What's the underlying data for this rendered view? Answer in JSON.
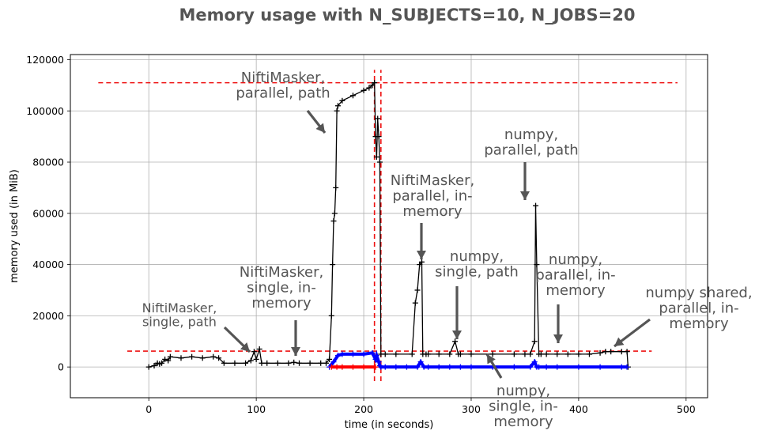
{
  "chart_data": {
    "type": "line",
    "title": "Memory usage with N_SUBJECTS=10, N_JOBS=20",
    "xlabel": "time (in seconds)",
    "ylabel": "memory used (in MiB)",
    "xlim": [
      -73,
      520
    ],
    "ylim": [
      -12000,
      122000
    ],
    "xticks": [
      0,
      100,
      200,
      300,
      400,
      500
    ],
    "yticks": [
      0,
      20000,
      40000,
      60000,
      80000,
      100000,
      120000
    ],
    "grid": true,
    "colors": {
      "main": "#000000",
      "blue": "#0000ff",
      "red": "#ff0000",
      "ref": "#ee1111",
      "annot": "#555555"
    },
    "series": [
      {
        "color": "#000000",
        "x": [
          0,
          5,
          8,
          10,
          12,
          15,
          18,
          20,
          30,
          40,
          50,
          60,
          65,
          70,
          80,
          90,
          95,
          98,
          100,
          103,
          105,
          110,
          120,
          130,
          135,
          140,
          150,
          160,
          165,
          168,
          170,
          171,
          172,
          173,
          174,
          175,
          176,
          180,
          190,
          200,
          205,
          208,
          210,
          211,
          212,
          213,
          214,
          215,
          216,
          220,
          230,
          245,
          248,
          250,
          252,
          254,
          255,
          258,
          260,
          270,
          280,
          285,
          288,
          290,
          300,
          320,
          340,
          350,
          355,
          359,
          360,
          361,
          363,
          365,
          370,
          380,
          390,
          400,
          410,
          420,
          425,
          430,
          440,
          445,
          446
        ],
        "y": [
          0,
          500,
          1500,
          1200,
          1500,
          3000,
          2500,
          4000,
          3500,
          4000,
          3500,
          4000,
          3500,
          1500,
          1500,
          1500,
          2500,
          6000,
          3000,
          7000,
          1500,
          1500,
          1500,
          1500,
          1800,
          1500,
          1500,
          1500,
          1500,
          3000,
          20000,
          40000,
          57000,
          60000,
          70000,
          100000,
          102000,
          104000,
          106000,
          108000,
          109000,
          110000,
          111000,
          90000,
          82000,
          97000,
          90000,
          80000,
          5000,
          5000,
          5000,
          5000,
          25000,
          30000,
          40000,
          41000,
          5000,
          5000,
          5000,
          5000,
          5000,
          10000,
          5000,
          5000,
          5000,
          5000,
          5000,
          5000,
          5000,
          10000,
          63000,
          40000,
          5000,
          5000,
          5000,
          5000,
          5000,
          5000,
          5000,
          5500,
          6000,
          6000,
          6000,
          6000,
          0
        ]
      },
      {
        "color": "#0000ff",
        "x": [
          168,
          172,
          176,
          180,
          190,
          200,
          208,
          211,
          212,
          214,
          215,
          216,
          220,
          230,
          240,
          250,
          253,
          256,
          260,
          270,
          280,
          290,
          300,
          320,
          340,
          355,
          359,
          361,
          363,
          370,
          380,
          400,
          420,
          440,
          445
        ],
        "y": [
          0,
          2000,
          4500,
          5000,
          5000,
          5000,
          5500,
          3000,
          4500,
          2000,
          500,
          0,
          0,
          0,
          0,
          0,
          2000,
          0,
          0,
          0,
          0,
          0,
          0,
          0,
          0,
          0,
          2000,
          0,
          0,
          0,
          0,
          0,
          0,
          0,
          0
        ]
      },
      {
        "color": "#ff0000",
        "x": [
          170,
          175,
          180,
          190,
          200,
          210,
          211
        ],
        "y": [
          0,
          0,
          0,
          0,
          0,
          0,
          0
        ]
      }
    ],
    "reference_lines": [
      {
        "orientation": "h",
        "y": 111000,
        "x_from": -47,
        "x_to": 492
      },
      {
        "orientation": "h",
        "y": 6200,
        "x_from": -20,
        "x_to": 468
      },
      {
        "orientation": "v",
        "x": 210,
        "y_from": -5500,
        "y_to": 116000
      },
      {
        "orientation": "v",
        "x": 216,
        "y_from": -5500,
        "y_to": 116000
      }
    ],
    "annotations": [
      {
        "lines": [
          "NiftiMasker,",
          "parallel, path"
        ]
      },
      {
        "lines": [
          "NiftiMasker,",
          "parallel, in-",
          "memory"
        ]
      },
      {
        "lines": [
          "numpy,",
          "parallel, path"
        ]
      },
      {
        "lines": [
          "numpy,",
          "single, path"
        ]
      },
      {
        "lines": [
          "NiftiMasker,",
          "single, in-",
          "memory"
        ]
      },
      {
        "lines": [
          "numpy,",
          "parallel, in-",
          "memory"
        ]
      },
      {
        "lines": [
          "numpy shared,",
          "parallel, in-",
          "memory"
        ]
      },
      {
        "lines": [
          "NiftiMasker,",
          "single, path"
        ]
      },
      {
        "lines": [
          "numpy,",
          "single, in-",
          "memory"
        ]
      }
    ]
  }
}
